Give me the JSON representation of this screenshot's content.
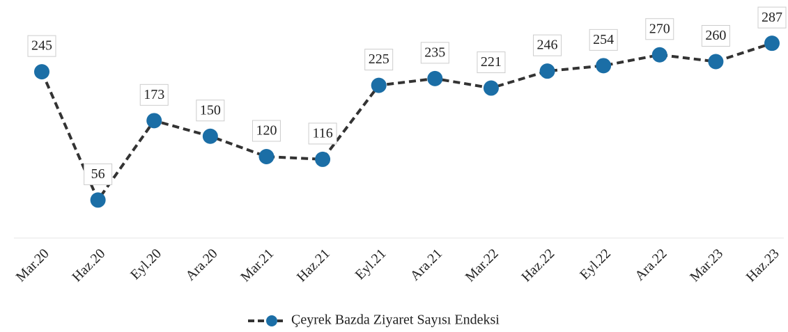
{
  "chart_data": {
    "type": "line",
    "categories": [
      "Mar.20",
      "Haz.20",
      "Eyl.20",
      "Ara.20",
      "Mar.21",
      "Haz.21",
      "Eyl.21",
      "Ara.21",
      "Mar.22",
      "Haz.22",
      "Eyl.22",
      "Ara.22",
      "Mar.23",
      "Haz.23"
    ],
    "series": [
      {
        "name": "Çeyrek Bazda Ziyaret Sayısı Endeksi",
        "color": "#1b6ea6",
        "values": [
          245,
          56,
          173,
          150,
          120,
          116,
          225,
          235,
          221,
          246,
          254,
          270,
          260,
          287
        ]
      }
    ],
    "ylim": [
      0,
      320
    ],
    "legend": "bottom"
  }
}
